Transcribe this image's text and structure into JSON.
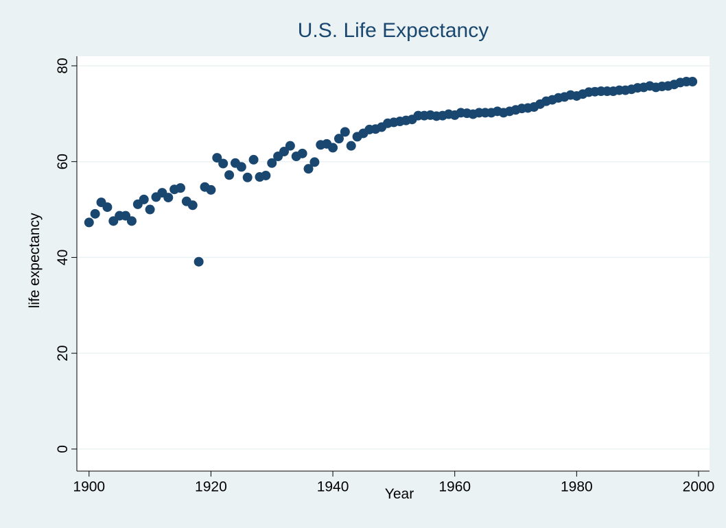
{
  "chart_data": {
    "type": "scatter",
    "title": "U.S. Life Expectancy",
    "x_label": "Year",
    "y_label": "life expectancy",
    "x": [
      1900,
      1901,
      1902,
      1903,
      1904,
      1905,
      1906,
      1907,
      1908,
      1909,
      1910,
      1911,
      1912,
      1913,
      1914,
      1915,
      1916,
      1917,
      1918,
      1919,
      1920,
      1921,
      1922,
      1923,
      1924,
      1925,
      1926,
      1927,
      1928,
      1929,
      1930,
      1931,
      1932,
      1933,
      1934,
      1935,
      1936,
      1937,
      1938,
      1939,
      1940,
      1941,
      1942,
      1943,
      1944,
      1945,
      1946,
      1947,
      1948,
      1949,
      1950,
      1951,
      1952,
      1953,
      1954,
      1955,
      1956,
      1957,
      1958,
      1959,
      1960,
      1961,
      1962,
      1963,
      1964,
      1965,
      1966,
      1967,
      1968,
      1969,
      1970,
      1971,
      1972,
      1973,
      1974,
      1975,
      1976,
      1977,
      1978,
      1979,
      1980,
      1981,
      1982,
      1983,
      1984,
      1985,
      1986,
      1987,
      1988,
      1989,
      1990,
      1991,
      1992,
      1993,
      1994,
      1995,
      1996,
      1997,
      1998,
      1999
    ],
    "series": [
      {
        "color": "#1a476f",
        "values": [
          47.3,
          49.1,
          51.5,
          50.5,
          47.6,
          48.7,
          48.7,
          47.6,
          51.1,
          52.1,
          50.0,
          52.6,
          53.5,
          52.5,
          54.2,
          54.5,
          51.7,
          50.9,
          39.1,
          54.7,
          54.1,
          60.8,
          59.6,
          57.2,
          59.7,
          58.9,
          56.7,
          60.4,
          56.8,
          57.1,
          59.7,
          61.1,
          62.1,
          63.3,
          61.1,
          61.7,
          58.5,
          59.9,
          63.5,
          63.7,
          62.9,
          64.8,
          66.2,
          63.3,
          65.2,
          65.9,
          66.7,
          66.8,
          67.2,
          68.0,
          68.2,
          68.4,
          68.6,
          68.8,
          69.6,
          69.6,
          69.7,
          69.5,
          69.6,
          69.9,
          69.7,
          70.2,
          70.1,
          69.9,
          70.2,
          70.2,
          70.2,
          70.5,
          70.2,
          70.5,
          70.8,
          71.1,
          71.2,
          71.4,
          72.0,
          72.6,
          72.9,
          73.3,
          73.5,
          73.9,
          73.7,
          74.1,
          74.5,
          74.6,
          74.7,
          74.7,
          74.7,
          74.9,
          74.9,
          75.1,
          75.4,
          75.5,
          75.8,
          75.5,
          75.7,
          75.8,
          76.1,
          76.5,
          76.7,
          76.7
        ]
      }
    ],
    "xlim": [
      1898,
      2001.8
    ],
    "ylim": [
      -4.6,
      82
    ],
    "xticks": [
      1900,
      1920,
      1940,
      1960,
      1980,
      2000
    ],
    "yticks": [
      0,
      20,
      40,
      60,
      80
    ],
    "grid": true
  }
}
